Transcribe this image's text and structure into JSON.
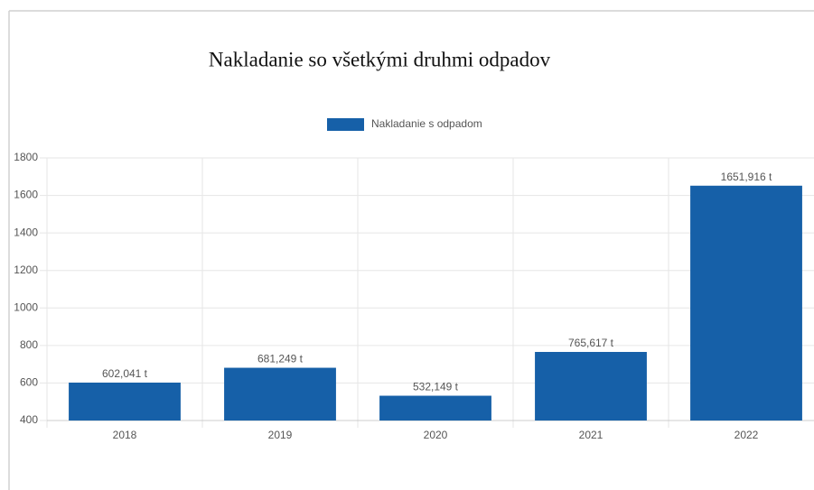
{
  "chart_data": {
    "type": "bar",
    "title": "Nakladanie so všetkými druhmi odpadov",
    "categories": [
      "2018",
      "2019",
      "2020",
      "2021",
      "2022"
    ],
    "series": [
      {
        "name": "Nakladanie s odpadom",
        "color": "#1660a8",
        "values": [
          602.041,
          681.249,
          532.149,
          765.617,
          1651.916
        ],
        "value_labels": [
          "602,041 t",
          "681,249 t",
          "532,149 t",
          "765,617 t",
          "1651,916 t"
        ]
      }
    ],
    "ylim": [
      400,
      1800
    ],
    "yticks": [
      400,
      600,
      800,
      1000,
      1200,
      1400,
      1600,
      1800
    ],
    "grid": true,
    "legend": "top"
  }
}
